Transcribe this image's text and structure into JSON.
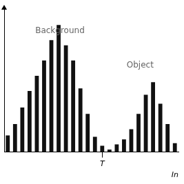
{
  "chart_data": {
    "type": "bar",
    "categories": [
      null,
      null,
      null,
      null,
      null,
      null,
      null,
      null,
      null,
      null,
      null,
      null,
      null,
      "T",
      null,
      null,
      null,
      null,
      null,
      null,
      null,
      null,
      null,
      null
    ],
    "values": [
      0.13,
      0.22,
      0.35,
      0.48,
      0.6,
      0.72,
      0.88,
      1.0,
      0.84,
      0.72,
      0.5,
      0.3,
      0.12,
      0.05,
      0.02,
      0.06,
      0.1,
      0.18,
      0.3,
      0.45,
      0.55,
      0.38,
      0.22,
      0.07
    ],
    "color": "#111111",
    "xlabel": "In",
    "ylim": [
      0,
      1.12
    ],
    "annotations": [
      "Background",
      "Object"
    ],
    "tick_labels": "x",
    "grid": false
  }
}
